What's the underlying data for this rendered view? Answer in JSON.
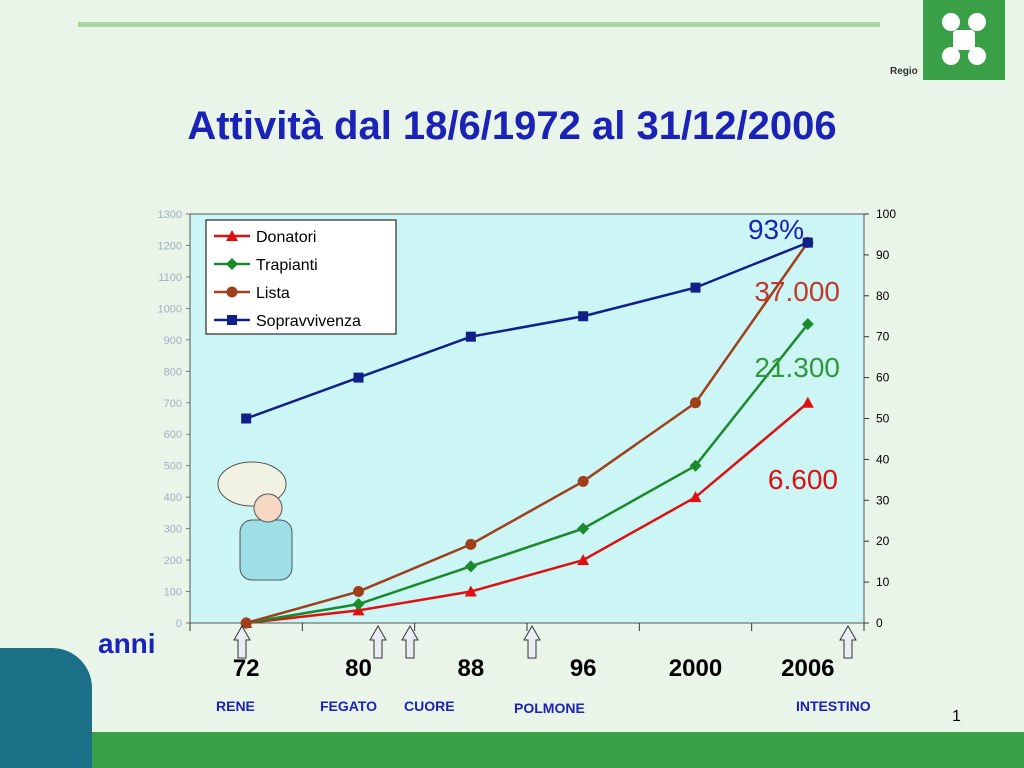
{
  "title": "Attività dal 18/6/1972 al 31/12/2006",
  "logo_text": "Regio",
  "page_number": "1",
  "anni_label": "anni",
  "callouts": [
    {
      "text": "93%",
      "color": "#1a22b8"
    },
    {
      "text": "37.000",
      "color": "#c0392b"
    },
    {
      "text": "21.300",
      "color": "#2e9a3a"
    },
    {
      "text": "6.600",
      "color": "#dd1111"
    }
  ],
  "organs": [
    {
      "label": "RENE"
    },
    {
      "label": "FEGATO"
    },
    {
      "label": "CUORE"
    },
    {
      "label": "POLMONE"
    },
    {
      "label": "INTESTINO"
    }
  ],
  "colors": {
    "donatori": "#e01010",
    "trapianti": "#1a8a2a",
    "lista": "#a0401a",
    "sopravvivenza": "#10208a",
    "plot_bg": "#ccf5f5"
  },
  "chart_data": {
    "type": "line",
    "title": "Attività dal 18/6/1972 al 31/12/2006",
    "xlabel": "anni",
    "categories": [
      "72",
      "80",
      "88",
      "96",
      "2000",
      "2006"
    ],
    "y_left": {
      "min": 0,
      "max": 1300,
      "ticks": [
        0,
        100,
        200,
        300,
        400,
        500,
        600,
        700,
        800,
        900,
        1000,
        1100,
        1200,
        1300
      ]
    },
    "y_right": {
      "min": 0,
      "max": 100,
      "ticks": [
        0,
        10,
        20,
        30,
        40,
        50,
        60,
        70,
        80,
        90,
        100
      ]
    },
    "legend_position": "top-left",
    "series": [
      {
        "name": "Donatori",
        "axis": "left",
        "marker": "triangle",
        "values": [
          0,
          40,
          100,
          200,
          400,
          700
        ]
      },
      {
        "name": "Trapianti",
        "axis": "left",
        "marker": "diamond",
        "values": [
          0,
          60,
          180,
          300,
          500,
          950
        ]
      },
      {
        "name": "Lista",
        "axis": "left",
        "marker": "circle",
        "values": [
          0,
          100,
          250,
          450,
          700,
          1210
        ]
      },
      {
        "name": "Sopravvivenza",
        "axis": "right",
        "marker": "square",
        "values": [
          50,
          60,
          70,
          75,
          82,
          93
        ]
      }
    ]
  }
}
